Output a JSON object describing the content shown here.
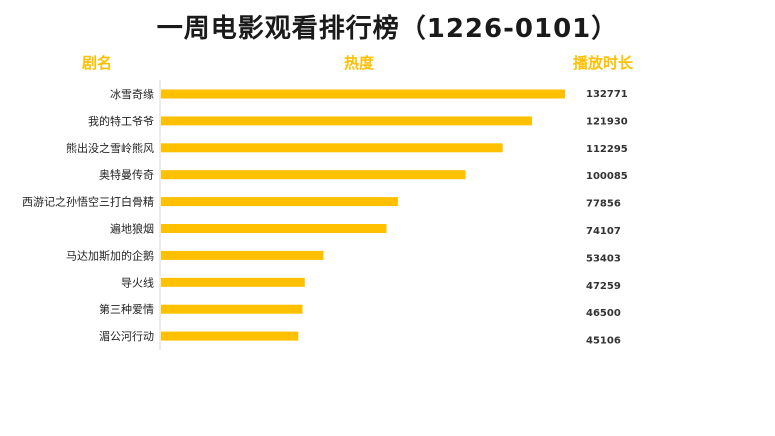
{
  "title": "一周电影观看排行榜（1226-0101）",
  "headers": {
    "name": "剧名",
    "heat": "热度",
    "duration": "播放时长"
  },
  "colors": {
    "bar": "#FFC000",
    "header": "#FFC000",
    "axis": "#D9D9D9"
  },
  "chart_data": {
    "type": "bar",
    "orientation": "horizontal",
    "title": "一周电影观看排行榜（1226-0101）",
    "categories": [
      "冰雪奇缘",
      "我的特工爷爷",
      "熊出没之雪岭熊风",
      "奥特曼传奇",
      "西游记之孙悟空三打白骨精",
      "遍地狼烟",
      "马达加斯加的企鹅",
      "导火线",
      "第三种爱情",
      "湄公河行动"
    ],
    "values": [
      132771,
      121930,
      112295,
      100085,
      77856,
      74107,
      53403,
      47259,
      46500,
      45106
    ],
    "xlim": [
      0,
      132771
    ],
    "grid": false,
    "legend": "none"
  }
}
